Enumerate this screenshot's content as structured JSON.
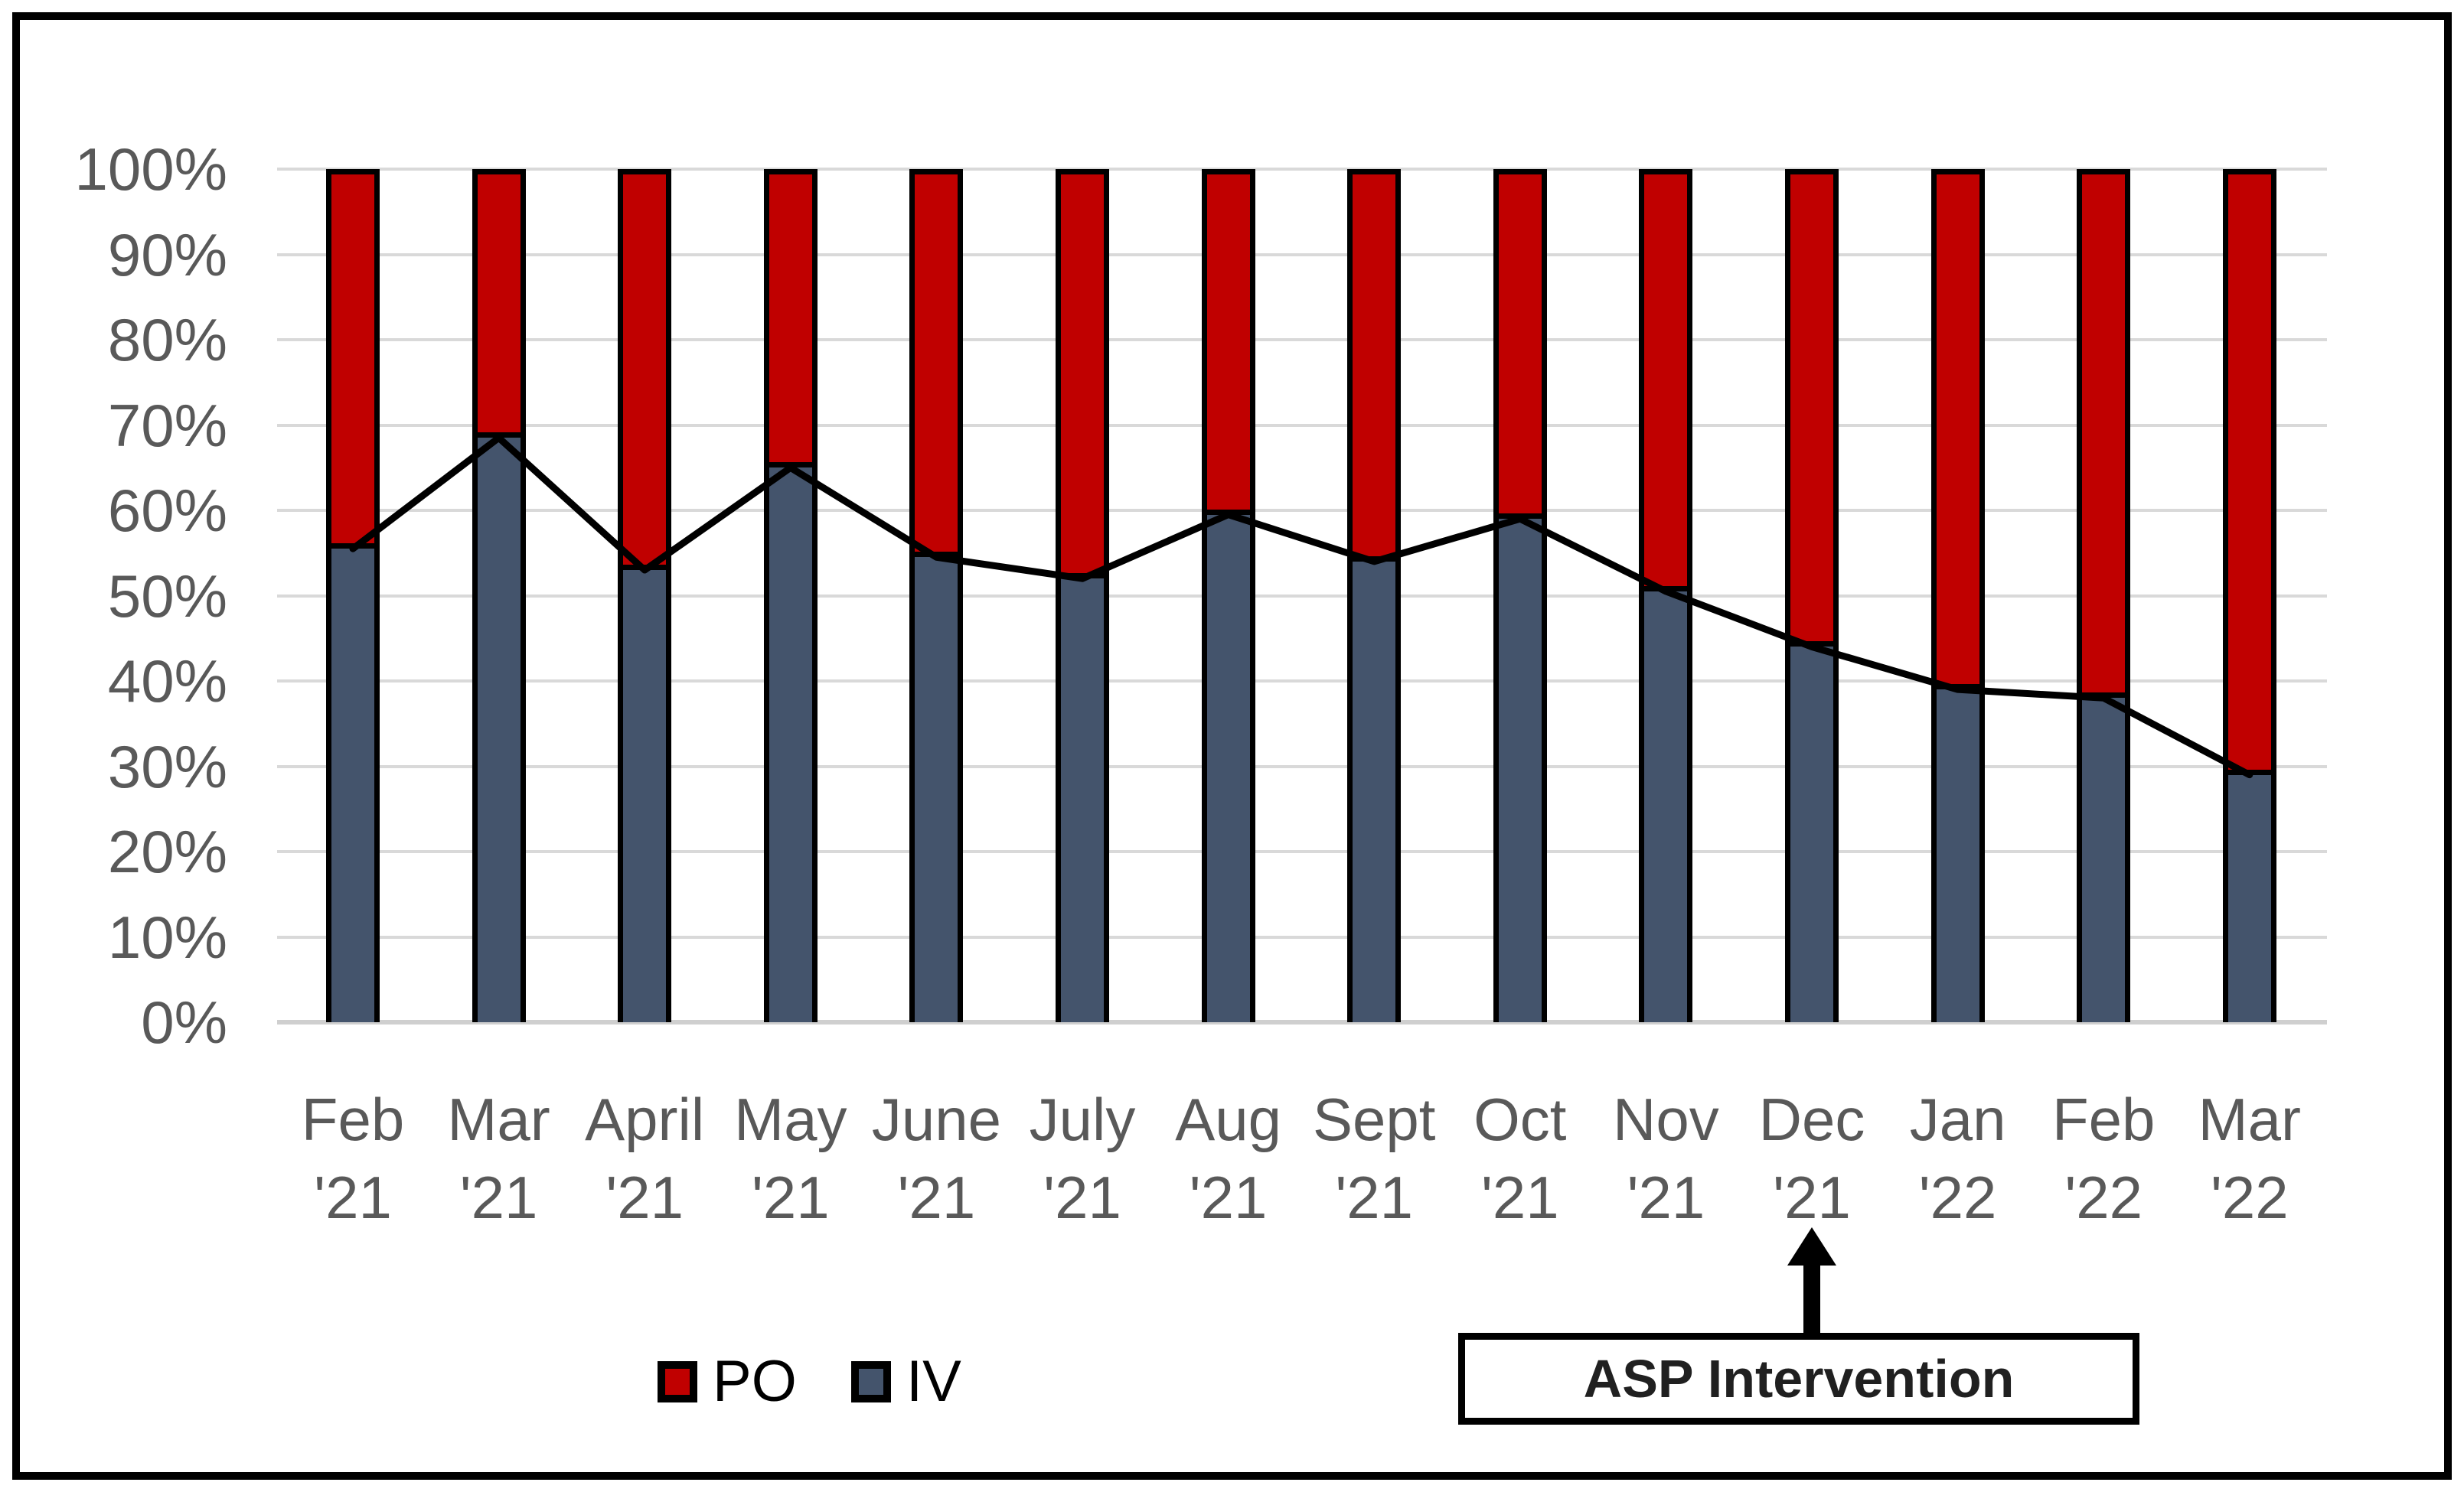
{
  "chart_data": {
    "type": "bar",
    "subtype": "100-percent-stacked-column-with-line-overlay",
    "title": "",
    "categories": [
      "Feb '21",
      "Mar '21",
      "April '21",
      "May '21",
      "June '21",
      "July '21",
      "Aug '21",
      "Sept '21",
      "Oct '21",
      "Nov '21",
      "Dec '21",
      "Jan '22",
      "Feb '22",
      "Mar '22"
    ],
    "x_tick_line1": [
      "Feb",
      "Mar",
      "April",
      "May",
      "June",
      "July",
      "Aug",
      "Sept",
      "Oct",
      "Nov",
      "Dec",
      "Jan",
      "Feb",
      "Mar"
    ],
    "x_tick_line2": [
      "'21",
      "'21",
      "'21",
      "'21",
      "'21",
      "'21",
      "'21",
      "'21",
      "'21",
      "'21",
      "'21",
      "'22",
      "'22",
      "'22"
    ],
    "stack_total": 100,
    "series": [
      {
        "name": "PO",
        "color": "#C00000",
        "values": [
          44.5,
          31.5,
          47,
          35,
          45.5,
          48,
          40.5,
          46,
          41,
          49.5,
          56,
          61,
          62,
          71
        ]
      },
      {
        "name": "IV",
        "color": "#44546C",
        "values": [
          55.5,
          68.5,
          53,
          65,
          54.5,
          52,
          59.5,
          54,
          59,
          50.5,
          44,
          39,
          38,
          29
        ]
      }
    ],
    "line_overlay": {
      "name": "IV trend line",
      "color": "#000000",
      "values": [
        55.5,
        68.5,
        53,
        65,
        54.5,
        52,
        59.5,
        54,
        59,
        50.5,
        44,
        39,
        38,
        29
      ]
    },
    "xlabel": "",
    "ylabel": "",
    "ylim": [
      0,
      100
    ],
    "y_ticks": [
      "100%",
      "90%",
      "80%",
      "70%",
      "60%",
      "50%",
      "40%",
      "30%",
      "20%",
      "10%",
      "0%"
    ],
    "grid": true,
    "gridline_color": "#D9D9D9",
    "axis_text_color": "#595959",
    "legend_position": "bottom-left",
    "legend": [
      "PO",
      "IV"
    ]
  },
  "legend": {
    "po_label": "PO",
    "iv_label": "IV"
  },
  "annotation": {
    "label": "ASP Intervention",
    "arrow_points_to": "Dec '21"
  }
}
